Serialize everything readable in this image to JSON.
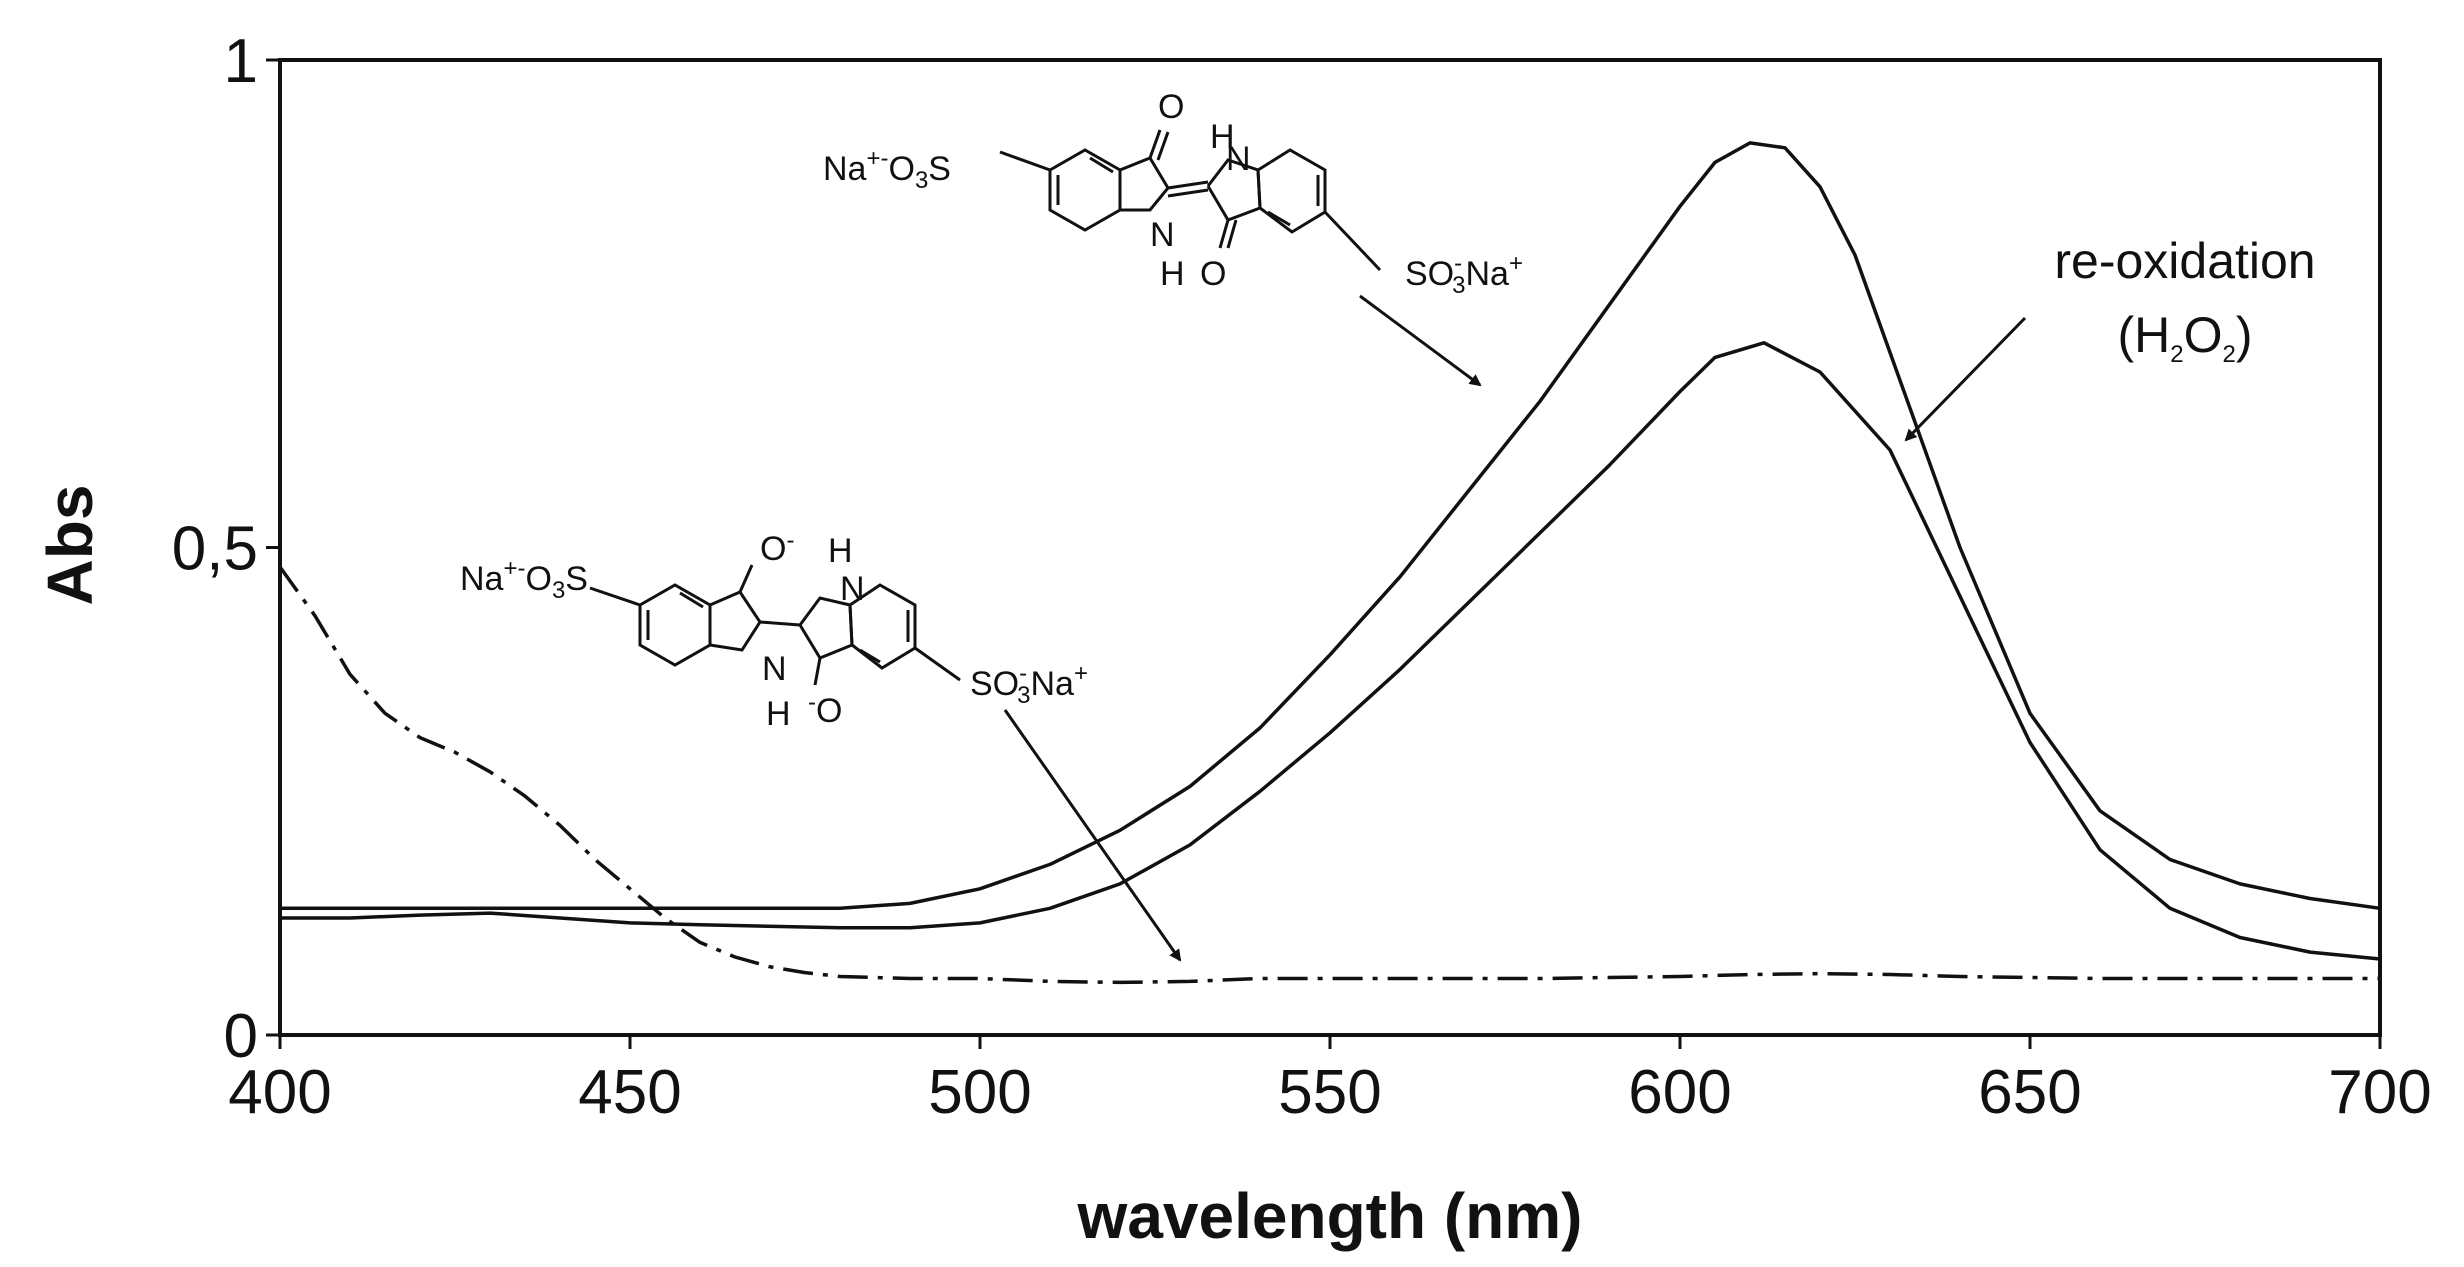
{
  "chart_data": {
    "type": "line",
    "xlabel": "wavelength (nm)",
    "ylabel": "Abs",
    "xlim": [
      400,
      700
    ],
    "ylim": [
      0,
      1
    ],
    "x_ticks": [
      "400",
      "450",
      "500",
      "550",
      "600",
      "650",
      "700"
    ],
    "y_ticks": [
      "0",
      "0,5",
      "1"
    ],
    "grid": false,
    "legend": "none",
    "colors": {
      "line": "#111111",
      "frame": "#111111",
      "background": "#ffffff"
    },
    "series": [
      {
        "line_style": "solid",
        "points": [
          [
            400,
            0.13
          ],
          [
            420,
            0.13
          ],
          [
            450,
            0.13
          ],
          [
            480,
            0.13
          ],
          [
            490,
            0.135
          ],
          [
            500,
            0.15
          ],
          [
            510,
            0.175
          ],
          [
            520,
            0.21
          ],
          [
            530,
            0.255
          ],
          [
            540,
            0.315
          ],
          [
            550,
            0.39
          ],
          [
            560,
            0.47
          ],
          [
            570,
            0.56
          ],
          [
            580,
            0.65
          ],
          [
            590,
            0.75
          ],
          [
            600,
            0.85
          ],
          [
            605,
            0.895
          ],
          [
            610,
            0.915
          ],
          [
            615,
            0.91
          ],
          [
            620,
            0.87
          ],
          [
            625,
            0.8
          ],
          [
            630,
            0.7
          ],
          [
            640,
            0.5
          ],
          [
            650,
            0.33
          ],
          [
            660,
            0.23
          ],
          [
            670,
            0.18
          ],
          [
            680,
            0.155
          ],
          [
            690,
            0.14
          ],
          [
            700,
            0.13
          ]
        ]
      },
      {
        "line_style": "solid",
        "points": [
          [
            400,
            0.12
          ],
          [
            410,
            0.12
          ],
          [
            420,
            0.123
          ],
          [
            430,
            0.125
          ],
          [
            440,
            0.12
          ],
          [
            450,
            0.115
          ],
          [
            460,
            0.113
          ],
          [
            480,
            0.11
          ],
          [
            490,
            0.11
          ],
          [
            500,
            0.115
          ],
          [
            510,
            0.13
          ],
          [
            520,
            0.155
          ],
          [
            530,
            0.195
          ],
          [
            540,
            0.25
          ],
          [
            550,
            0.31
          ],
          [
            560,
            0.375
          ],
          [
            570,
            0.445
          ],
          [
            580,
            0.515
          ],
          [
            590,
            0.585
          ],
          [
            600,
            0.66
          ],
          [
            605,
            0.695
          ],
          [
            612,
            0.71
          ],
          [
            620,
            0.68
          ],
          [
            630,
            0.6
          ],
          [
            640,
            0.45
          ],
          [
            650,
            0.3
          ],
          [
            660,
            0.19
          ],
          [
            670,
            0.13
          ],
          [
            680,
            0.1
          ],
          [
            690,
            0.085
          ],
          [
            700,
            0.078
          ]
        ]
      },
      {
        "line_style": "dash-dot",
        "points": [
          [
            400,
            0.48
          ],
          [
            405,
            0.43
          ],
          [
            410,
            0.37
          ],
          [
            415,
            0.33
          ],
          [
            420,
            0.305
          ],
          [
            425,
            0.29
          ],
          [
            430,
            0.27
          ],
          [
            435,
            0.245
          ],
          [
            440,
            0.215
          ],
          [
            445,
            0.18
          ],
          [
            450,
            0.15
          ],
          [
            455,
            0.12
          ],
          [
            460,
            0.095
          ],
          [
            465,
            0.08
          ],
          [
            470,
            0.07
          ],
          [
            475,
            0.064
          ],
          [
            480,
            0.06
          ],
          [
            490,
            0.058
          ],
          [
            500,
            0.058
          ],
          [
            510,
            0.055
          ],
          [
            520,
            0.054
          ],
          [
            530,
            0.055
          ],
          [
            540,
            0.058
          ],
          [
            560,
            0.058
          ],
          [
            580,
            0.058
          ],
          [
            600,
            0.06
          ],
          [
            610,
            0.062
          ],
          [
            620,
            0.063
          ],
          [
            630,
            0.062
          ],
          [
            640,
            0.06
          ],
          [
            660,
            0.058
          ],
          [
            700,
            0.058
          ]
        ]
      }
    ],
    "annotations": {
      "reoxidation_line1": "re-oxidation",
      "reoxidation_line2_parts": [
        "(H",
        "2",
        "O",
        "2",
        ")"
      ]
    }
  },
  "structures": {
    "upper_left_group": [
      "Na",
      "+",
      "-",
      "O",
      "3",
      "S"
    ],
    "upper_right_group": [
      "SO",
      "-",
      "3",
      "Na",
      "+"
    ],
    "lower_left_group": [
      "Na",
      "+",
      "-",
      "O",
      "3",
      "S"
    ],
    "lower_right_group": [
      "SO",
      "-",
      "3",
      "Na",
      "+"
    ],
    "oxygen": "O",
    "nitrogen": "N",
    "hydrogen": "H",
    "oxide": [
      "O",
      "-"
    ],
    "oxide_bottom": [
      "-",
      "O"
    ]
  }
}
